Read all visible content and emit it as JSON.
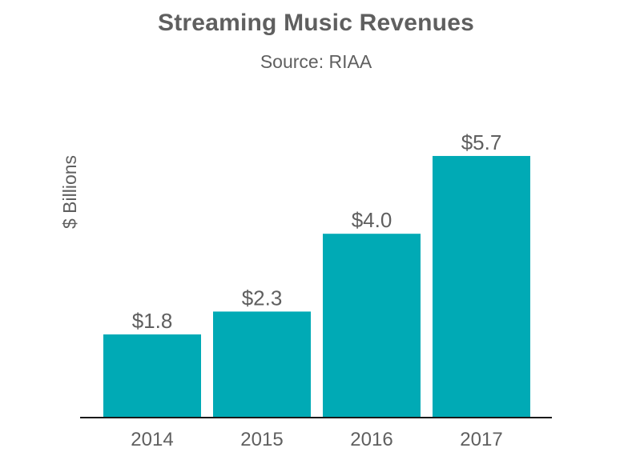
{
  "chart_data": {
    "type": "bar",
    "title": "Streaming Music Revenues",
    "subtitle": "Source: RIAA",
    "xlabel": "",
    "ylabel": "$ Billions",
    "categories": [
      "2014",
      "2015",
      "2016",
      "2017"
    ],
    "values": [
      1.8,
      2.3,
      4.0,
      5.7
    ],
    "data_labels": [
      "$1.8",
      "$2.3",
      "$4.0",
      "$5.7"
    ],
    "bar_color": "#00aab5",
    "axis_color": "#1a1a1a",
    "text_color": "#5f5f5f",
    "grid": false,
    "legend": "none"
  }
}
